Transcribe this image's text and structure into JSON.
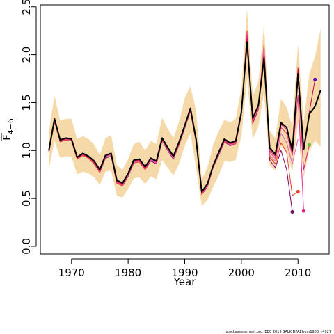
{
  "chart_data": {
    "type": "line",
    "title": "",
    "xlabel": "Year",
    "ylabel_main": "F",
    "ylabel_sub": "4−6",
    "xlim": [
      1964.5,
      2015.5
    ],
    "ylim": [
      -0.08,
      2.52
    ],
    "xticks": [
      1970,
      1980,
      1990,
      2000,
      2010
    ],
    "xtick_labels": [
      "1970",
      "1980",
      "1990",
      "2000",
      "2010"
    ],
    "yticks": [
      0.0,
      0.5,
      1.0,
      1.5,
      2.0,
      2.5
    ],
    "ytick_labels": [
      "0.0",
      "0.5",
      "1.0",
      "1.5",
      "2.0",
      "2.5"
    ],
    "grid": false,
    "legend": "none",
    "footer": "stockassessment.org, EBC 2015 SALK DPAEfrom1900, r4927",
    "colors": {
      "band": "#f5d9a8",
      "main": "#000000",
      "retro": [
        "#c8004c",
        "#dd1c77",
        "#e7298a",
        "#df65b0",
        "#ef3b2c",
        "#7b0068",
        "#66bd40",
        "#4daf2f"
      ]
    },
    "band": {
      "x": [
        1966,
        1967,
        1968,
        1969,
        1970,
        1971,
        1972,
        1973,
        1974,
        1975,
        1976,
        1977,
        1978,
        1979,
        1980,
        1981,
        1982,
        1983,
        1984,
        1985,
        1986,
        1987,
        1988,
        1989,
        1990,
        1991,
        1992,
        1993,
        1994,
        1995,
        1996,
        1997,
        1998,
        1999,
        2000,
        2001,
        2002,
        2003,
        2004,
        2005,
        2006,
        2007,
        2008,
        2009,
        2010,
        2011,
        2012,
        2013,
        2014
      ],
      "lower": [
        0.8,
        1.1,
        0.92,
        0.94,
        0.93,
        0.75,
        0.78,
        0.76,
        0.72,
        0.64,
        0.78,
        0.79,
        0.53,
        0.51,
        0.6,
        0.71,
        0.72,
        0.65,
        0.73,
        0.7,
        0.9,
        0.82,
        0.74,
        0.86,
        1.05,
        1.18,
        0.82,
        0.42,
        0.48,
        0.62,
        0.74,
        0.89,
        0.88,
        0.9,
        1.15,
        1.75,
        1.12,
        1.25,
        1.6,
        0.84,
        0.79,
        1.05,
        0.98,
        0.78,
        1.3,
        0.72,
        1.0,
        1.1,
        1.04
      ],
      "upper": [
        1.2,
        1.57,
        1.31,
        1.33,
        1.33,
        1.12,
        1.15,
        1.12,
        1.06,
        0.95,
        1.13,
        1.16,
        0.85,
        0.8,
        0.91,
        1.07,
        1.09,
        1.0,
        1.1,
        1.07,
        1.34,
        1.23,
        1.13,
        1.3,
        1.55,
        1.67,
        1.42,
        0.7,
        0.82,
        1.06,
        1.2,
        1.32,
        1.29,
        1.33,
        1.65,
        2.48,
        1.57,
        1.72,
        2.31,
        1.21,
        1.13,
        1.54,
        1.45,
        1.25,
        2.11,
        1.3,
        1.8,
        1.98,
        2.27
      ]
    },
    "series": [
      {
        "x": [
          1966,
          1967,
          1968,
          1969,
          1970,
          1971,
          1972,
          1973,
          1974,
          1975,
          1976,
          1977,
          1978,
          1979,
          1980,
          1981,
          1982,
          1983,
          1984,
          1985,
          1986,
          1987,
          1988,
          1989,
          1990,
          1991,
          1992,
          1993,
          1994,
          1995,
          1996,
          1997,
          1998,
          1999,
          2000,
          2001,
          2002,
          2003,
          2004,
          2005,
          2006,
          2007,
          2008,
          2009,
          2010,
          2011,
          2012,
          2013,
          2014
        ],
        "y": [
          1.0,
          1.33,
          1.11,
          1.13,
          1.12,
          0.93,
          0.97,
          0.94,
          0.89,
          0.8,
          0.95,
          0.97,
          0.69,
          0.66,
          0.76,
          0.9,
          0.91,
          0.83,
          0.92,
          0.89,
          1.13,
          1.03,
          0.94,
          1.09,
          1.26,
          1.44,
          1.12,
          0.57,
          0.65,
          0.84,
          0.98,
          1.12,
          1.08,
          1.1,
          1.4,
          2.13,
          1.34,
          1.47,
          1.96,
          1.03,
          0.96,
          1.29,
          1.24,
          1.0,
          1.8,
          1.01,
          1.38,
          1.46,
          1.63
        ]
      },
      {
        "x": [
          1966,
          1967,
          1968,
          1969,
          1970,
          1971,
          1972,
          1973,
          1974,
          1975,
          1976,
          1977,
          1978,
          1979,
          1980,
          1981,
          1982,
          1983,
          1984,
          1985,
          1986,
          1987,
          1988,
          1989,
          1990,
          1991,
          1992,
          1993,
          1994,
          1995,
          1996,
          1997,
          1998,
          1999,
          2000,
          2001,
          2002,
          2003,
          2004,
          2005,
          2006,
          2007,
          2008,
          2009,
          2010,
          2011,
          2012,
          2013
        ],
        "y": [
          1.01,
          1.32,
          1.11,
          1.13,
          1.12,
          0.93,
          0.97,
          0.94,
          0.88,
          0.79,
          0.95,
          0.97,
          0.68,
          0.65,
          0.76,
          0.89,
          0.9,
          0.82,
          0.92,
          0.89,
          1.12,
          1.03,
          0.94,
          1.09,
          1.26,
          1.43,
          1.11,
          0.56,
          0.65,
          0.84,
          0.98,
          1.11,
          1.08,
          1.09,
          1.41,
          2.16,
          1.33,
          1.48,
          1.98,
          1.02,
          0.95,
          1.28,
          1.24,
          1.0,
          1.86,
          1.02,
          1.4,
          1.74
        ]
      },
      {
        "x": [
          1966,
          1967,
          1968,
          1969,
          1970,
          1971,
          1972,
          1973,
          1974,
          1975,
          1976,
          1977,
          1978,
          1979,
          1980,
          1981,
          1982,
          1983,
          1984,
          1985,
          1986,
          1987,
          1988,
          1989,
          1990,
          1991,
          1992,
          1993,
          1994,
          1995,
          1996,
          1997,
          1998,
          1999,
          2000,
          2001,
          2002,
          2003,
          2004,
          2005,
          2006,
          2007,
          2008,
          2009,
          2010,
          2011,
          2012
        ],
        "y": [
          1.0,
          1.32,
          1.11,
          1.12,
          1.12,
          0.93,
          0.96,
          0.93,
          0.88,
          0.79,
          0.94,
          0.96,
          0.68,
          0.65,
          0.75,
          0.89,
          0.9,
          0.82,
          0.91,
          0.88,
          1.12,
          1.02,
          0.93,
          1.08,
          1.25,
          1.43,
          1.11,
          0.56,
          0.64,
          0.84,
          0.97,
          1.11,
          1.07,
          1.09,
          1.4,
          2.18,
          1.32,
          1.47,
          2.0,
          1.0,
          0.94,
          1.27,
          1.22,
          0.98,
          1.75,
          0.8,
          1.06
        ]
      },
      {
        "x": [
          1966,
          1967,
          1968,
          1969,
          1970,
          1971,
          1972,
          1973,
          1974,
          1975,
          1976,
          1977,
          1978,
          1979,
          1980,
          1981,
          1982,
          1983,
          1984,
          1985,
          1986,
          1987,
          1988,
          1989,
          1990,
          1991,
          1992,
          1993,
          1994,
          1995,
          1996,
          1997,
          1998,
          1999,
          2000,
          2001,
          2002,
          2003,
          2004,
          2005,
          2006,
          2007,
          2008,
          2009,
          2010,
          2011
        ],
        "y": [
          0.99,
          1.31,
          1.1,
          1.12,
          1.11,
          0.92,
          0.96,
          0.93,
          0.87,
          0.78,
          0.94,
          0.96,
          0.67,
          0.64,
          0.75,
          0.88,
          0.89,
          0.81,
          0.91,
          0.88,
          1.11,
          1.02,
          0.93,
          1.07,
          1.25,
          1.42,
          1.1,
          0.55,
          0.64,
          0.83,
          0.97,
          1.1,
          1.07,
          1.08,
          1.39,
          2.2,
          1.31,
          1.46,
          2.02,
          0.98,
          0.92,
          1.24,
          1.18,
          0.95,
          1.58,
          0.37
        ]
      },
      {
        "x": [
          1966,
          1967,
          1968,
          1969,
          1970,
          1971,
          1972,
          1973,
          1974,
          1975,
          1976,
          1977,
          1978,
          1979,
          1980,
          1981,
          1982,
          1983,
          1984,
          1985,
          1986,
          1987,
          1988,
          1989,
          1990,
          1991,
          1992,
          1993,
          1994,
          1995,
          1996,
          1997,
          1998,
          1999,
          2000,
          2001,
          2002,
          2003,
          2004,
          2005,
          2006,
          2007,
          2008,
          2009,
          2010
        ],
        "y": [
          0.99,
          1.31,
          1.1,
          1.12,
          1.11,
          0.92,
          0.96,
          0.93,
          0.87,
          0.78,
          0.93,
          0.95,
          0.67,
          0.64,
          0.74,
          0.88,
          0.89,
          0.81,
          0.9,
          0.87,
          1.11,
          1.01,
          0.92,
          1.07,
          1.24,
          1.42,
          1.1,
          0.55,
          0.63,
          0.83,
          0.96,
          1.1,
          1.06,
          1.08,
          1.38,
          2.22,
          1.3,
          1.45,
          2.08,
          0.95,
          0.89,
          1.18,
          1.08,
          0.86,
          1.12
        ]
      },
      {
        "x": [
          1966,
          1967,
          1968,
          1969,
          1970,
          1971,
          1972,
          1973,
          1974,
          1975,
          1976,
          1977,
          1978,
          1979,
          1980,
          1981,
          1982,
          1983,
          1984,
          1985,
          1986,
          1987,
          1988,
          1989,
          1990,
          1991,
          1992,
          1993,
          1994,
          1995,
          1996,
          1997,
          1998,
          1999,
          2000,
          2001,
          2002,
          2003,
          2004,
          2005,
          2006,
          2007,
          2008,
          2009,
          2010
        ],
        "y": [
          0.98,
          1.3,
          1.09,
          1.11,
          1.1,
          0.91,
          0.95,
          0.92,
          0.86,
          0.77,
          0.93,
          0.95,
          0.66,
          0.63,
          0.74,
          0.87,
          0.88,
          0.8,
          0.9,
          0.87,
          1.1,
          1.01,
          0.92,
          1.06,
          1.24,
          1.41,
          1.09,
          0.54,
          0.63,
          0.82,
          0.96,
          1.09,
          1.06,
          1.07,
          1.38,
          2.25,
          1.29,
          1.44,
          2.11,
          0.93,
          0.86,
          1.08,
          0.98,
          0.53,
          0.57
        ]
      },
      {
        "x": [
          1966,
          1967,
          1968,
          1969,
          1970,
          1971,
          1972,
          1973,
          1974,
          1975,
          1976,
          1977,
          1978,
          1979,
          1980,
          1981,
          1982,
          1983,
          1984,
          1985,
          1986,
          1987,
          1988,
          1989,
          1990,
          1991,
          1992,
          1993,
          1994,
          1995,
          1996,
          1997,
          1998,
          1999,
          2000,
          2001,
          2002,
          2003,
          2004,
          2005,
          2006,
          2007,
          2008,
          2009
        ],
        "y": [
          0.98,
          1.3,
          1.09,
          1.11,
          1.1,
          0.91,
          0.95,
          0.92,
          0.86,
          0.77,
          0.92,
          0.94,
          0.66,
          0.63,
          0.73,
          0.87,
          0.88,
          0.8,
          0.89,
          0.86,
          1.1,
          1.0,
          0.91,
          1.06,
          1.23,
          1.41,
          1.09,
          0.54,
          0.62,
          0.82,
          0.95,
          1.09,
          1.05,
          1.07,
          1.37,
          2.23,
          1.28,
          1.43,
          2.05,
          0.9,
          0.82,
          1.0,
          0.8,
          0.36
        ]
      }
    ],
    "endpoints": [
      {
        "x": 2013,
        "y": 1.74
      },
      {
        "x": 2012,
        "y": 1.06
      },
      {
        "x": 2011,
        "y": 0.37
      },
      {
        "x": 2010,
        "y": 0.57
      },
      {
        "x": 2009,
        "y": 0.36
      }
    ]
  }
}
